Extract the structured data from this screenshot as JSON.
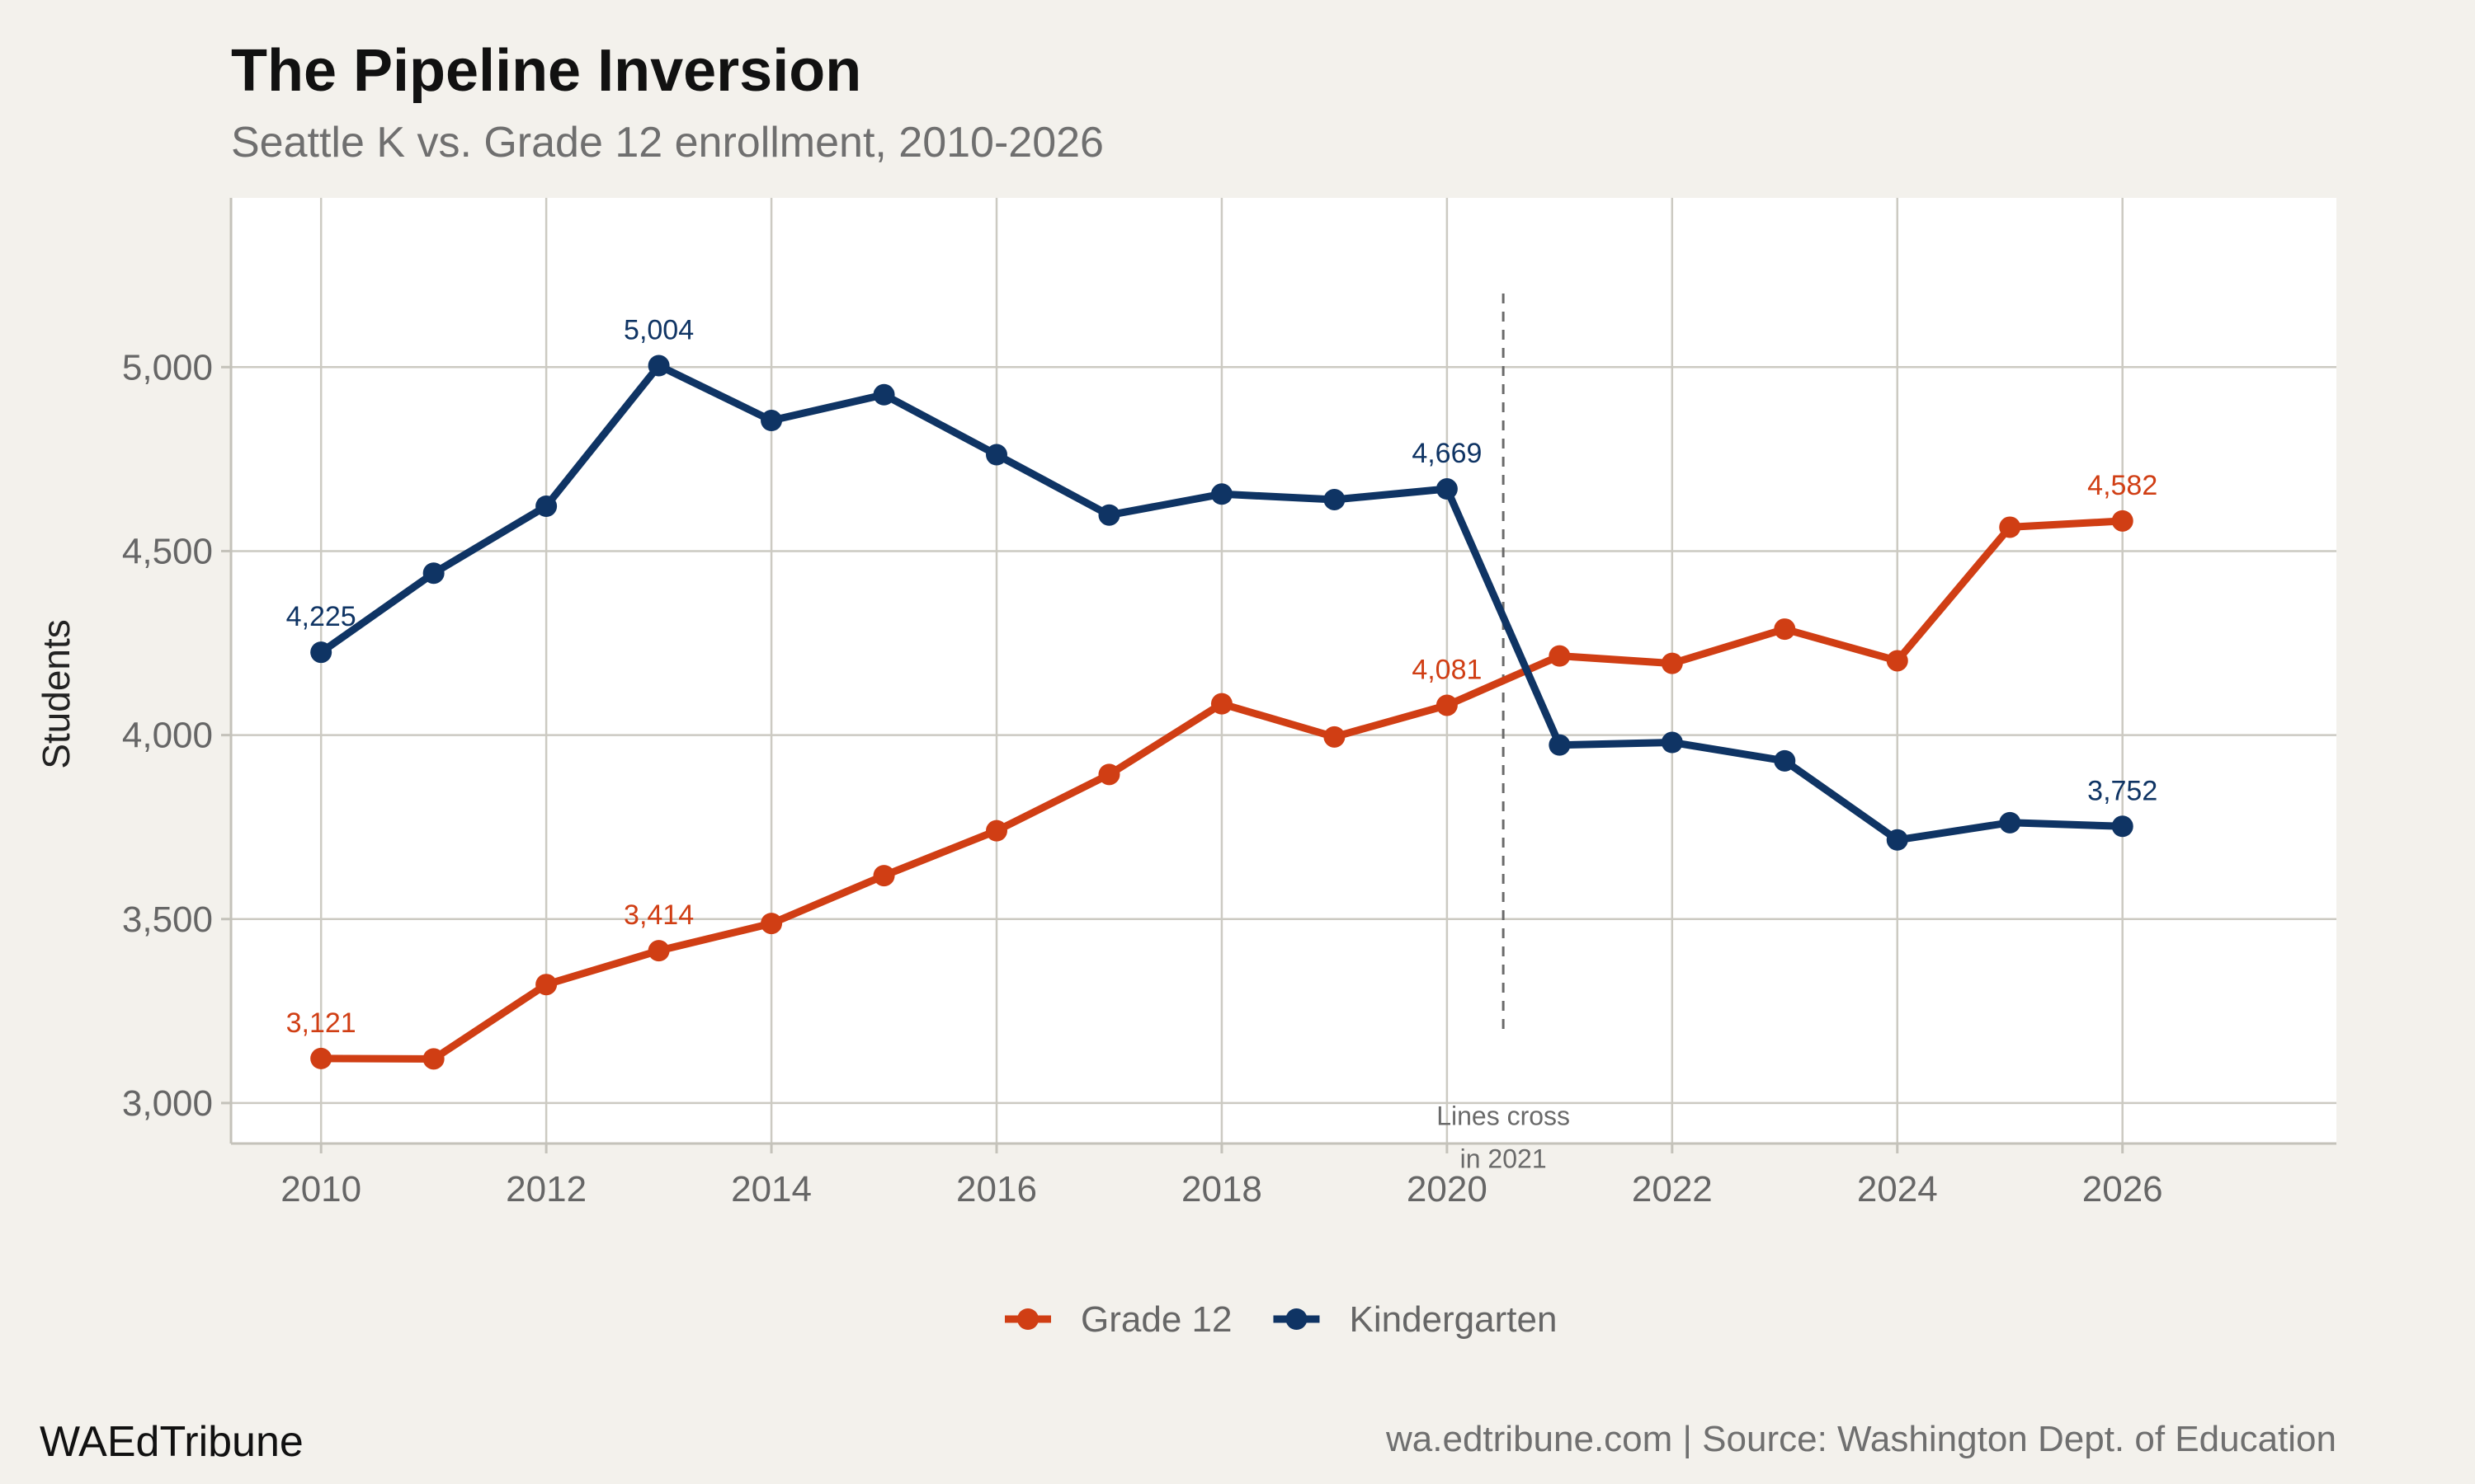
{
  "chart_data": {
    "type": "line",
    "title": "The Pipeline Inversion",
    "subtitle": "Seattle K vs. Grade 12 enrollment, 2010-2026",
    "xlabel": "",
    "ylabel": "Students",
    "x": [
      2010,
      2011,
      2012,
      2013,
      2014,
      2015,
      2016,
      2017,
      2018,
      2019,
      2020,
      2021,
      2022,
      2023,
      2024,
      2025,
      2026
    ],
    "x_ticks": [
      2010,
      2012,
      2014,
      2016,
      2018,
      2020,
      2022,
      2024,
      2026
    ],
    "x_tick_labels": [
      "2010",
      "2012",
      "2014",
      "2016",
      "2018",
      "2020",
      "2022",
      "2024",
      "2026"
    ],
    "xlim": [
      2009.2,
      2027.9
    ],
    "ylim": [
      2890,
      5460
    ],
    "y_ticks": [
      3000,
      3500,
      4000,
      4500,
      5000
    ],
    "y_tick_labels": [
      "3,000",
      "3,500",
      "4,000",
      "4,500",
      "5,000"
    ],
    "grid": true,
    "legend_position": "bottom",
    "series": [
      {
        "name": "Grade 12",
        "color": "#d03e14",
        "values": [
          3121,
          3120,
          3322,
          3414,
          3488,
          3618,
          3740,
          3893,
          4085,
          3995,
          4081,
          4215,
          4195,
          4288,
          4202,
          4565,
          4582
        ],
        "labels": [
          {
            "x": 2010,
            "y": 3121,
            "text": "3,121"
          },
          {
            "x": 2013,
            "y": 3414,
            "text": "3,414"
          },
          {
            "x": 2020,
            "y": 4081,
            "text": "4,081"
          },
          {
            "x": 2026,
            "y": 4582,
            "text": "4,582"
          }
        ]
      },
      {
        "name": "Kindergarten",
        "color": "#0f3464",
        "values": [
          4225,
          4440,
          4622,
          5004,
          4855,
          4925,
          4762,
          4598,
          4655,
          4640,
          4669,
          3973,
          3980,
          3930,
          3715,
          3762,
          3752
        ],
        "labels": [
          {
            "x": 2010,
            "y": 4225,
            "text": "4,225"
          },
          {
            "x": 2013,
            "y": 5004,
            "text": "5,004"
          },
          {
            "x": 2020,
            "y": 4669,
            "text": "4,669"
          },
          {
            "x": 2026,
            "y": 3752,
            "text": "3,752"
          }
        ]
      }
    ],
    "annotations": [
      {
        "type": "vline",
        "x": 2020.5,
        "y_from": 3200,
        "y_to": 5200
      },
      {
        "type": "text",
        "x": 2020.5,
        "y": 2940,
        "lines": [
          "Lines cross",
          "in 2021"
        ]
      }
    ]
  },
  "footer": {
    "brand": "WAEdTribune",
    "source": "wa.edtribune.com | Source: Washington Dept. of Education"
  },
  "colors": {
    "background": "#f3f1ec",
    "panel": "#ffffff",
    "grid": "#cccac2",
    "grade12": "#d03e14",
    "kindergarten": "#0f3464",
    "annotation": "#6a6a6a"
  }
}
